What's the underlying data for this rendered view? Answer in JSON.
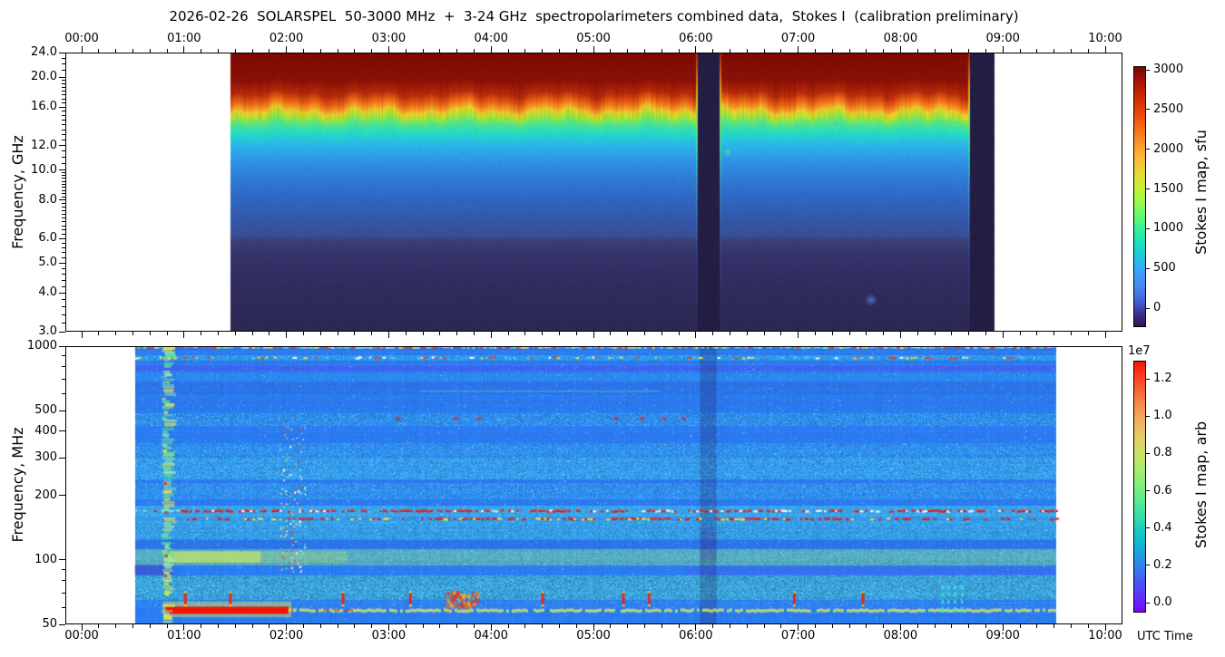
{
  "title": "2026-02-26  SOLARSPEL  50-3000 MHz  +  3-24 GHz  spectropolarimeters combined data,  Stokes I  (calibration preliminary)",
  "xaxis": {
    "label": "UTC Time",
    "major_tick_labels": [
      "00:00",
      "01:00",
      "02:00",
      "03:00",
      "04:00",
      "05:00",
      "06:00",
      "07:00",
      "08:00",
      "09:00",
      "10:00"
    ],
    "major_tick_hours": [
      0,
      1,
      2,
      3,
      4,
      5,
      6,
      7,
      8,
      9,
      10
    ],
    "minor_interval_minutes": 10,
    "range_hours": [
      -0.16,
      10.17
    ]
  },
  "top_panel": {
    "ylabel": "Frequency, GHz",
    "ytick_labels": [
      "24.0",
      "20.0",
      "16.0",
      "12.0",
      "10.0",
      "8.0",
      "6.0",
      "5.0",
      "4.0",
      "3.0"
    ],
    "ytick_values": [
      24,
      20,
      16,
      12,
      10,
      8,
      6,
      5,
      4,
      3
    ],
    "yminor_values": [
      3.2,
      3.4,
      3.6,
      3.8,
      4.2,
      4.4,
      4.6,
      4.8,
      5.2,
      5.4,
      5.6,
      5.8,
      6.2,
      6.4,
      6.6,
      6.8,
      7,
      7.2,
      7.4,
      7.6,
      7.8,
      8.2,
      8.4,
      8.6,
      8.8,
      9,
      9.2,
      9.4,
      9.6,
      9.8,
      10.5,
      11,
      11.5,
      12.5,
      13,
      13.5,
      14,
      14.5,
      15,
      15.5,
      16.5,
      17,
      17.5,
      18,
      18.5,
      19,
      19.5,
      21,
      22,
      23
    ],
    "ylim_GHz": [
      3,
      24
    ]
  },
  "bottom_panel": {
    "ylabel": "Frequency, MHz",
    "ytick_labels": [
      "1000",
      "500",
      "400",
      "300",
      "200",
      "100",
      "50"
    ],
    "ytick_values": [
      1000,
      500,
      400,
      300,
      200,
      100,
      50
    ],
    "yminor_values": [
      900,
      800,
      700,
      600,
      90,
      80,
      70,
      60
    ],
    "ylim_MHz": [
      50,
      1000
    ]
  },
  "colorbar_top": {
    "label": "Stokes I map, sfu",
    "tick_labels": [
      "0",
      "500",
      "1000",
      "1500",
      "2000",
      "2500",
      "3000"
    ],
    "tick_values": [
      0,
      500,
      1000,
      1500,
      2000,
      2500,
      3000
    ],
    "cmap_stops": [
      "#30123b",
      "#3b3291",
      "#4465db",
      "#4687f6",
      "#3aa2fc",
      "#23c3e4",
      "#18dec0",
      "#2cf09e",
      "#5cfb70",
      "#95fb51",
      "#c1f334",
      "#e2dd37",
      "#f6c33a",
      "#fda331",
      "#fb7e21",
      "#f25912",
      "#e03a06",
      "#c52603",
      "#a11201",
      "#7a0403"
    ]
  },
  "colorbar_bottom": {
    "label": "Stokes I map, arb",
    "offset_text": "1e7",
    "tick_labels": [
      "0.0",
      "0.2",
      "0.4",
      "0.6",
      "0.8",
      "1.0",
      "1.2"
    ],
    "tick_values": [
      0,
      0.2,
      0.4,
      0.6,
      0.8,
      1.0,
      1.2
    ],
    "cmap_stops": [
      "#8000ff",
      "#6030fc",
      "#4858f4",
      "#2e83e8",
      "#16abdb",
      "#12c6c6",
      "#32dcb0",
      "#58e896",
      "#7eee7e",
      "#a4ec6c",
      "#c6e26a",
      "#e0d06a",
      "#f0b45e",
      "#f89450",
      "#fc6a38",
      "#fc3c20",
      "#f01408"
    ]
  },
  "chart_data": [
    {
      "type": "heatmap",
      "panel": "top",
      "title": "2026-02-26 SOLARSPEL 3-24 GHz spectropolarimeter, Stokes I",
      "xlabel": "UTC Time",
      "ylabel": "Frequency, GHz",
      "x_range": [
        "00:00",
        "10:00"
      ],
      "ylim_GHz": [
        3,
        24
      ],
      "yscale": "log",
      "colorbar": {
        "label": "Stokes I map, sfu",
        "range_sfu": [
          0,
          3000
        ]
      },
      "coverage_hours": [
        1.45,
        8.91
      ],
      "gap_hours": [
        [
          6.01,
          6.24
        ],
        [
          8.67,
          8.91
        ]
      ],
      "gap_color": "#241e44",
      "profile_freq_GHz": [
        3,
        4,
        5,
        6,
        8,
        10,
        12,
        13,
        14,
        15,
        16,
        17,
        18,
        20,
        24
      ],
      "profile_sfu": [
        150,
        160,
        180,
        230,
        420,
        560,
        780,
        1000,
        1300,
        1700,
        2200,
        2600,
        2950,
        3000,
        3000
      ],
      "gradient_stops": [
        [
          0.0,
          "#7c0b03"
        ],
        [
          0.1,
          "#8c1105"
        ],
        [
          0.145,
          "#b52a0b"
        ],
        [
          0.175,
          "#e55f13"
        ],
        [
          0.195,
          "#f29222"
        ],
        [
          0.21,
          "#e7c929"
        ],
        [
          0.23,
          "#a6e234"
        ],
        [
          0.255,
          "#52e388"
        ],
        [
          0.285,
          "#25dcc2"
        ],
        [
          0.33,
          "#2bb6ea"
        ],
        [
          0.4,
          "#2f8ce2"
        ],
        [
          0.5,
          "#2f6cc8"
        ],
        [
          0.6,
          "#3356a8"
        ],
        [
          0.655,
          "#374f96"
        ],
        [
          0.67,
          "#3c4076"
        ],
        [
          0.72,
          "#35336a"
        ],
        [
          0.85,
          "#2f2c5c"
        ],
        [
          1.0,
          "#2b2850"
        ]
      ],
      "spots": [
        {
          "t": 7.71,
          "f_GHz": 3.8,
          "color": "#5b83e8",
          "r": 7
        },
        {
          "t": 6.31,
          "f_GHz": 11.4,
          "color": "#3ee6a0",
          "r": 5
        },
        {
          "t": 2.78,
          "f_GHz": 13.1,
          "color": "#3ee6a0",
          "r": 4
        }
      ]
    },
    {
      "type": "heatmap",
      "panel": "bottom",
      "title": "2026-02-26 SOLARSPEL 50-3000 MHz spectropolarimeter, Stokes I",
      "xlabel": "UTC Time",
      "ylabel": "Frequency, MHz",
      "x_range": [
        "00:00",
        "10:00"
      ],
      "ylim_MHz": [
        50,
        1000
      ],
      "yscale": "log",
      "colorbar": {
        "label": "Stokes I map, arb",
        "range": [
          0,
          13000000
        ]
      },
      "coverage_hours": [
        0.52,
        9.52
      ],
      "background_color": "#2b7cf2",
      "bands": [
        [
          1000,
          992,
          "#28dca8",
          0.95,
          0.8
        ],
        [
          992,
          972,
          "#3f55e6",
          0.45,
          0.2
        ],
        [
          900,
          868,
          "#38c4e8",
          0.38,
          0.7
        ],
        [
          806,
          782,
          "#6a3ef0",
          0.4,
          0.2
        ],
        [
          745,
          700,
          "#33a4f2",
          0.3,
          0.3
        ],
        [
          672,
          600,
          "#2b66d8",
          0.33,
          0.2
        ],
        [
          560,
          515,
          "#2e6ee0",
          0.25,
          0.2
        ],
        [
          482,
          430,
          "#36b0ee",
          0.35,
          0.8
        ],
        [
          352,
          306,
          "#38bcee",
          0.28,
          0.7
        ],
        [
          300,
          242,
          "#41c9ea",
          0.4,
          0.8
        ],
        [
          228,
          196,
          "#3ab2ea",
          0.3,
          0.7
        ],
        [
          178,
          164,
          "#46c8e2",
          0.5,
          0.5
        ],
        [
          162,
          152,
          "#46c8e2",
          0.4,
          0.5
        ],
        [
          150,
          126,
          "#40c4e0",
          0.45,
          0.7
        ],
        [
          124,
          114,
          "#2b62d0",
          0.3,
          0.2
        ],
        [
          112,
          96,
          "#7edc92",
          0.5,
          0.5
        ],
        [
          84,
          66,
          "#4ed2b4",
          0.42,
          0.9
        ],
        [
          64,
          61,
          "#37a0e8",
          0.2,
          0.5
        ]
      ],
      "events": {
        "burst_column": {
          "t": [
            0.78,
            0.905
          ],
          "f_MHz": [
            50,
            1000
          ],
          "colors": [
            "#c4ec60",
            "#eae84e",
            "#5ee892",
            "#98ecb0"
          ]
        },
        "speckle_cluster": {
          "t": [
            1.93,
            2.18
          ],
          "f_MHz": [
            88,
            430
          ],
          "colors": [
            "#ffffff",
            "#f2ee66",
            "#ee3424",
            "#7af0d0"
          ]
        },
        "red_bar": {
          "t": [
            0.82,
            2.02
          ],
          "f_MHz": [
            56,
            60.5
          ],
          "color": "#ee1606",
          "halo_color": "#f0e84c"
        },
        "yellow_line": {
          "t": [
            2.02,
            9.5
          ],
          "f_MHz": [
            57,
            59
          ],
          "color": "#dce85c"
        },
        "red_block": {
          "t": [
            3.56,
            3.87
          ],
          "f_MHz": [
            61,
            72
          ],
          "colors": [
            "#ee2a10",
            "#f2b83c",
            "#e86a20"
          ]
        },
        "red_dash_66MHz_t": [
          1.0,
          1.44,
          2.54,
          3.2,
          4.49,
          5.28,
          5.53,
          6.95,
          7.62
        ],
        "red_dash_457MHz_t": [
          3.07,
          3.64,
          3.86,
          5.2,
          5.45,
          5.67,
          5.86
        ],
        "teal_dash_t": [
          8.4,
          8.46,
          8.52,
          8.59
        ],
        "rfi_lines_MHz": [
          996,
          884,
          171,
          157
        ],
        "bright_band_110MHz": {
          "t": [
            0.85,
            1.75
          ],
          "color": "#d6ec5a"
        },
        "purple_patch_90MHz": {
          "t": [
            0.52,
            0.9
          ],
          "color": "#4a3cc0"
        },
        "purple_band_90MHz": {
          "t": [
            5.9,
            9.5
          ],
          "color": "#5b4ae8"
        },
        "faint_line_620MHz": {
          "t": [
            3.3,
            5.65
          ],
          "color": "#5adcdc"
        },
        "dark_column_t": [
          6.04,
          6.2
        ]
      }
    }
  ]
}
